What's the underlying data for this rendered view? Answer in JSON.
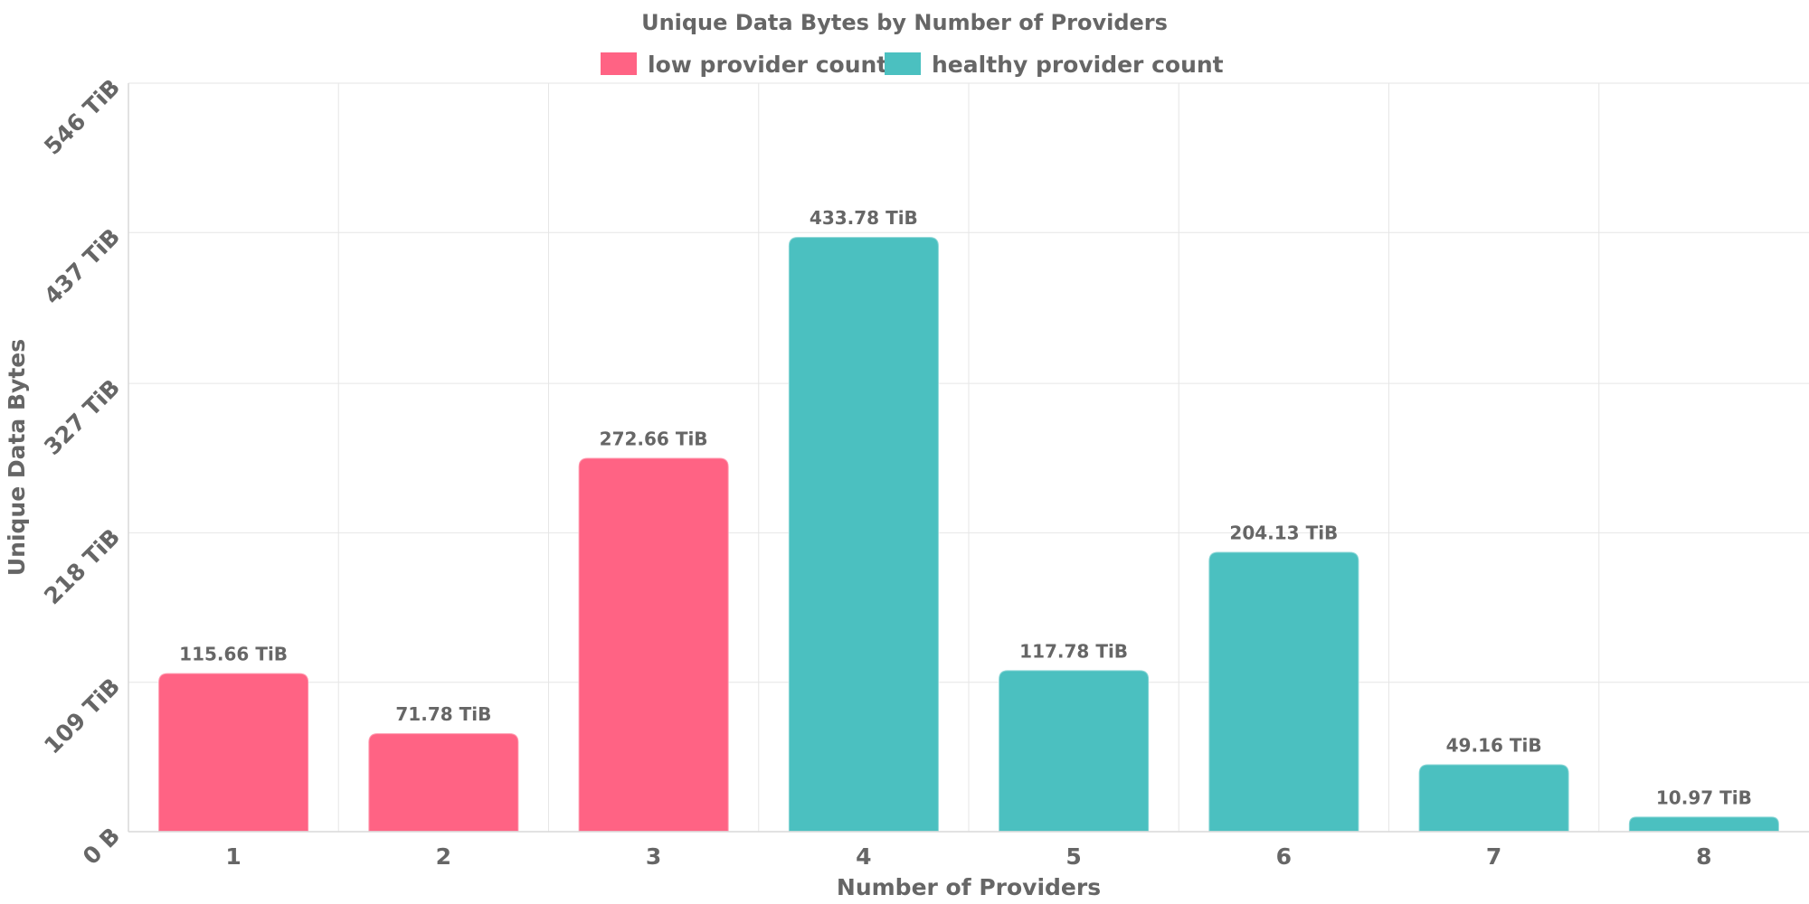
{
  "chart_data": {
    "type": "bar",
    "title": "Unique Data Bytes by Number of Providers",
    "xlabel": "Number of Providers",
    "ylabel": "Unique Data Bytes",
    "categories": [
      "1",
      "2",
      "3",
      "4",
      "5",
      "6",
      "7",
      "8"
    ],
    "values": [
      115.66,
      71.78,
      272.66,
      433.78,
      117.78,
      204.13,
      49.16,
      10.97
    ],
    "value_unit": "TiB",
    "data_labels": [
      "115.66 TiB",
      "71.78 TiB",
      "272.66 TiB",
      "433.78 TiB",
      "117.78 TiB",
      "204.13 TiB",
      "49.16 TiB",
      "10.97 TiB"
    ],
    "bar_series": [
      "low provider count",
      "low provider count",
      "low provider count",
      "healthy provider count",
      "healthy provider count",
      "healthy provider count",
      "healthy provider count",
      "healthy provider count"
    ],
    "series": [
      {
        "name": "low provider count",
        "color": "#ff6384"
      },
      {
        "name": "healthy provider count",
        "color": "#4bc0c0"
      }
    ],
    "yticks": [
      0,
      109,
      218,
      327,
      437,
      546
    ],
    "ytick_labels": [
      "0 B",
      "109 TiB",
      "218 TiB",
      "327 TiB",
      "437 TiB",
      "546 TiB"
    ],
    "ylim": [
      0,
      546
    ],
    "grid": true,
    "legend_position": "top-center"
  }
}
